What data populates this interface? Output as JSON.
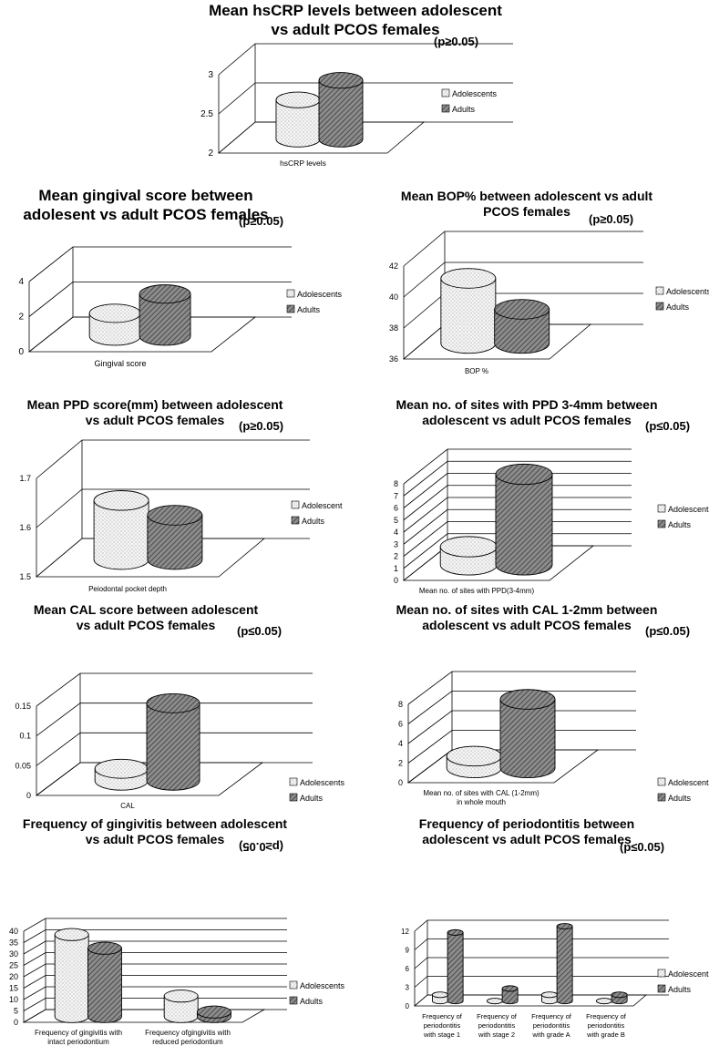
{
  "colors": {
    "adolescent_fill": "#f4f4f4",
    "adult_fill": "#6f6f6f",
    "grid": "#000000",
    "background": "#ffffff"
  },
  "chart_data": [
    {
      "type": "bar",
      "style": "3d-cylinder",
      "title": "Mean hsCRP levels between adolescent vs adult PCOS females",
      "p_value": "(p≥0.05)",
      "categories": [
        "hsCRP levels"
      ],
      "series": [
        {
          "name": "Adolescents",
          "values": [
            2.5
          ]
        },
        {
          "name": "Adults",
          "values": [
            2.75
          ]
        }
      ],
      "ylim": [
        2,
        3
      ],
      "yticks": [
        "2",
        "2.5",
        "3"
      ],
      "legend": "right",
      "grid": true
    },
    {
      "type": "bar",
      "style": "3d-cylinder",
      "title": "Mean gingival score between adolesent vs adult PCOS females",
      "p_value": "(p≥0.05)",
      "categories": [
        "Gingival score"
      ],
      "series": [
        {
          "name": "Adolescents",
          "values": [
            1.3
          ]
        },
        {
          "name": "Adults",
          "values": [
            2.4
          ]
        }
      ],
      "ylim": [
        0,
        4
      ],
      "yticks": [
        "0",
        "2",
        "4"
      ],
      "legend": "right",
      "grid": true
    },
    {
      "type": "bar",
      "style": "3d-cylinder",
      "title": "Mean BOP% between adolescent vs adult PCOS females",
      "p_value": "(p≥0.05)",
      "categories": [
        "BOP %"
      ],
      "series": [
        {
          "name": "Adolescents",
          "values": [
            40.2
          ]
        },
        {
          "name": "Adults",
          "values": [
            38.2
          ]
        }
      ],
      "ylim": [
        36,
        42
      ],
      "yticks": [
        "36",
        "38",
        "40",
        "42"
      ],
      "legend": "right",
      "grid": true
    },
    {
      "type": "bar",
      "style": "3d-cylinder",
      "title": "Mean PPD score(mm) between adolescent vs adult PCOS females",
      "p_value": "(p≥0.05)",
      "categories": [
        "Peiodontal pocket depth"
      ],
      "series": [
        {
          "name": "Adolescent",
          "values": [
            1.62
          ]
        },
        {
          "name": "Adults",
          "values": [
            1.59
          ]
        }
      ],
      "ylim": [
        1.5,
        1.7
      ],
      "yticks": [
        "1.5",
        "1.6",
        "1.7"
      ],
      "legend": "right",
      "grid": true
    },
    {
      "type": "bar",
      "style": "3d-cylinder",
      "title": "Mean no. of sites with PPD 3-4mm between adolescent vs adult PCOS females",
      "p_value": "(p≤0.05)",
      "categories": [
        "Mean no. of sites with PPD(3-4mm)"
      ],
      "series": [
        {
          "name": "Adolescents",
          "values": [
            1.5
          ]
        },
        {
          "name": "Adults",
          "values": [
            7.5
          ]
        }
      ],
      "ylim": [
        0,
        8
      ],
      "yticks": [
        "0",
        "1",
        "2",
        "3",
        "4",
        "5",
        "6",
        "7",
        "8"
      ],
      "legend": "right",
      "grid": true
    },
    {
      "type": "bar",
      "style": "3d-cylinder",
      "title": "Mean CAL score between adolescent vs adult PCOS females",
      "p_value": "(p≤0.05)",
      "categories": [
        "CAL"
      ],
      "series": [
        {
          "name": "Adolescents",
          "values": [
            0.02
          ]
        },
        {
          "name": "Adults",
          "values": [
            0.13
          ]
        }
      ],
      "ylim": [
        0,
        0.15
      ],
      "yticks": [
        "0",
        "0.05",
        "0.1",
        "0.15"
      ],
      "legend": "right",
      "grid": true
    },
    {
      "type": "bar",
      "style": "3d-cylinder",
      "title": "Mean no. of sites with CAL 1-2mm between adolescent vs adult PCOS females",
      "p_value": "(p≤0.05)",
      "categories": [
        "Mean no. of sites with CAL (1-2mm) in whole mouth"
      ],
      "series": [
        {
          "name": "Adolescents",
          "values": [
            1.2
          ]
        },
        {
          "name": "Adults",
          "values": [
            7.0
          ]
        }
      ],
      "ylim": [
        0,
        8
      ],
      "yticks": [
        "0",
        "2",
        "4",
        "6",
        "8"
      ],
      "legend": "right",
      "grid": true
    },
    {
      "type": "bar",
      "style": "3d-cylinder",
      "title": "Frequency of gingivitis between adolescent vs adult PCOS females",
      "p_value": "(p≥0.05)",
      "p_value_rotated": true,
      "categories": [
        "Frequency of gingivitis with intact periodontium",
        "Frequency ofgingivitis with reduced periodontium"
      ],
      "series": [
        {
          "name": "Adolescents",
          "values": [
            36,
            9
          ]
        },
        {
          "name": "Adults",
          "values": [
            30,
            2
          ]
        }
      ],
      "ylim": [
        0,
        40
      ],
      "yticks": [
        "0",
        "5",
        "10",
        "15",
        "20",
        "25",
        "30",
        "35",
        "40"
      ],
      "legend": "right",
      "grid": true
    },
    {
      "type": "bar",
      "style": "3d-cylinder",
      "title": "Frequency of periodontitis between adolescent vs adult PCOS females",
      "p_value": "(p≤0.05)",
      "categories": [
        "Frequency of periodontitis with stage 1",
        "Frequency of periodontitis with stage 2",
        "Frequency of periodontitis with grade A",
        "Frequency of periodontitis with grade B"
      ],
      "series": [
        {
          "name": "Adolescents",
          "values": [
            1,
            0,
            1,
            0
          ]
        },
        {
          "name": "Adults",
          "values": [
            11,
            2,
            12,
            1
          ]
        }
      ],
      "ylim": [
        0,
        12
      ],
      "yticks": [
        "0",
        "3",
        "6",
        "9",
        "12"
      ],
      "legend": "right",
      "grid": true
    }
  ]
}
